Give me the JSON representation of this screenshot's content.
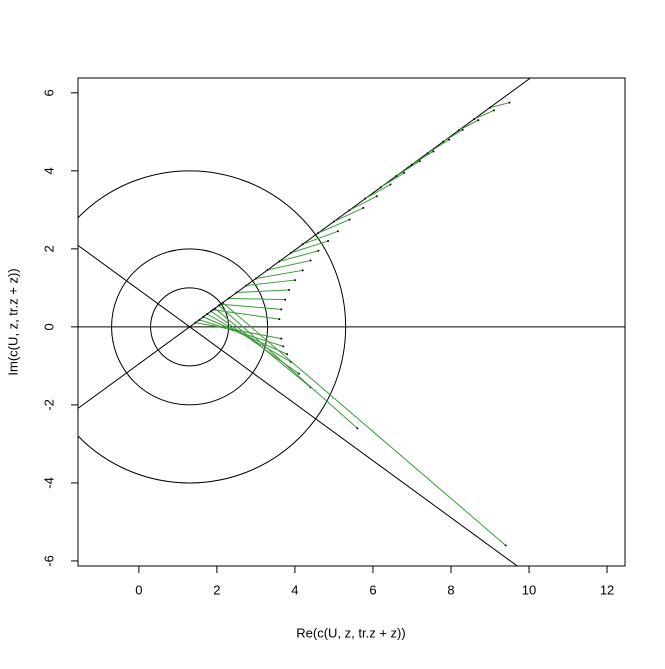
{
  "chart_data": {
    "type": "scatter",
    "xlabel": "Re(c(U, z, tr.z + z))",
    "ylabel": "Im(c(U, z, tr.z + z))",
    "xlim": [
      -1.56,
      12.46
    ],
    "ylim": [
      -6.13,
      6.38
    ],
    "xticks": [
      0,
      2,
      4,
      6,
      8,
      10,
      12
    ],
    "yticks": [
      -6,
      -4,
      -2,
      0,
      2,
      4,
      6
    ],
    "circles": {
      "cx": 1.3,
      "cy": 0,
      "radii": [
        1,
        2,
        4
      ],
      "color": "#000000"
    },
    "lines": [
      {
        "x": [
          -1.56,
          12.46
        ],
        "y": [
          0,
          0
        ]
      },
      {
        "x": [
          -1.56,
          10.2
        ],
        "y": [
          -2.09,
          6.5
        ]
      },
      {
        "x": [
          -1.56,
          10.0
        ],
        "y": [
          2.09,
          -6.35
        ]
      }
    ],
    "segments": {
      "color": "#3c9a3c",
      "x0": [
        1.9,
        2.1,
        2.3,
        2.5,
        2.75,
        3.0,
        3.3,
        3.6,
        3.9,
        4.2,
        4.6,
        5.0,
        5.4,
        5.8,
        6.2,
        6.6,
        7.0,
        7.4,
        7.8,
        8.2,
        8.6,
        9.0,
        1.45,
        1.55,
        1.65,
        1.75,
        1.85,
        1.95,
        2.05,
        2.15
      ],
      "y0": [
        0.44,
        0.58,
        0.73,
        0.88,
        1.06,
        1.24,
        1.46,
        1.68,
        1.9,
        2.12,
        2.41,
        2.7,
        2.99,
        3.29,
        3.58,
        3.87,
        4.16,
        4.45,
        4.75,
        5.04,
        5.33,
        5.62,
        0.11,
        0.18,
        0.26,
        0.33,
        0.4,
        0.47,
        0.55,
        0.62
      ],
      "x1": [
        3.6,
        3.65,
        3.75,
        3.85,
        4.0,
        4.2,
        4.4,
        4.6,
        4.85,
        5.1,
        5.4,
        5.75,
        6.1,
        6.45,
        6.8,
        7.2,
        7.55,
        7.95,
        8.3,
        8.7,
        9.1,
        9.5,
        3.65,
        3.7,
        3.8,
        3.9,
        4.1,
        4.4,
        5.6,
        9.4
      ],
      "y1": [
        0.2,
        0.45,
        0.7,
        0.95,
        1.2,
        1.45,
        1.7,
        1.95,
        2.2,
        2.45,
        2.75,
        3.05,
        3.35,
        3.65,
        3.95,
        4.25,
        4.5,
        4.8,
        5.05,
        5.3,
        5.55,
        5.75,
        -0.3,
        -0.5,
        -0.7,
        -0.9,
        -1.2,
        -1.55,
        -2.6,
        -5.6
      ]
    }
  }
}
